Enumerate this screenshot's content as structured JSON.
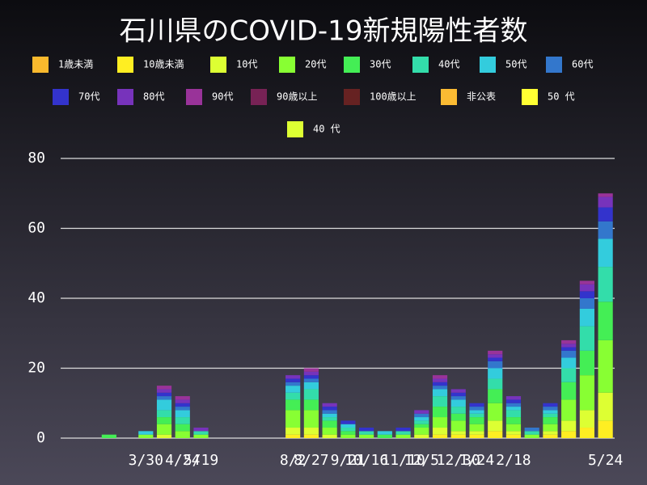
{
  "chart_data": {
    "type": "stacked_bar",
    "title": "石川県のCOVID-19新規陽性者数",
    "categories": [
      null,
      null,
      null,
      null,
      "3/30",
      null,
      "4/24",
      "5/19",
      null,
      null,
      null,
      null,
      "8/2",
      "8/27",
      null,
      "9/21",
      "10/16",
      null,
      "11/10",
      "12/5",
      null,
      "12/30",
      "1/24",
      null,
      "2/18",
      null,
      null,
      null,
      null,
      "5/24"
    ],
    "ylim": [
      0,
      80
    ],
    "yticks": [
      0,
      20,
      40,
      60,
      80
    ],
    "grid": true,
    "series": [
      {
        "name": "1歳未満",
        "color": "#f9b92d",
        "values": [
          0,
          0,
          0,
          0,
          0,
          0,
          0,
          0,
          0,
          0,
          0,
          0,
          0,
          0,
          0,
          0,
          0,
          0,
          0,
          0,
          0,
          0,
          0,
          0,
          0,
          0,
          0,
          0,
          0,
          0
        ]
      },
      {
        "name": "10歳未満",
        "color": "#ffee22",
        "values": [
          0,
          0,
          0,
          0,
          0,
          0,
          0,
          0,
          0,
          0,
          0,
          0,
          1,
          1,
          0,
          0,
          0,
          0,
          0,
          0,
          1,
          1,
          1,
          2,
          1,
          0,
          1,
          2,
          3,
          5
        ]
      },
      {
        "name": "10代",
        "color": "#ddff33",
        "values": [
          0,
          0,
          0,
          0,
          0,
          1,
          0,
          0,
          0,
          0,
          0,
          0,
          2,
          2,
          1,
          0,
          0,
          0,
          0,
          1,
          2,
          1,
          1,
          3,
          1,
          0,
          1,
          3,
          5,
          8
        ]
      },
      {
        "name": "20代",
        "color": "#88ff33",
        "values": [
          0,
          0,
          0,
          0,
          1,
          3,
          2,
          1,
          0,
          0,
          0,
          0,
          5,
          5,
          2,
          1,
          1,
          0,
          1,
          2,
          3,
          3,
          2,
          5,
          2,
          1,
          2,
          6,
          10,
          15
        ]
      },
      {
        "name": "30代",
        "color": "#44ee55",
        "values": [
          0,
          0,
          1,
          0,
          0,
          2,
          2,
          0,
          0,
          0,
          0,
          0,
          3,
          3,
          2,
          1,
          0,
          1,
          0,
          1,
          3,
          2,
          2,
          4,
          2,
          0,
          2,
          5,
          7,
          11
        ]
      },
      {
        "name": "40代",
        "color": "#33ddaa",
        "values": [
          0,
          0,
          0,
          0,
          0,
          2,
          2,
          1,
          0,
          0,
          0,
          0,
          2,
          3,
          1,
          1,
          1,
          0,
          1,
          1,
          3,
          2,
          1,
          3,
          2,
          1,
          1,
          4,
          7,
          10
        ]
      },
      {
        "name": "50代",
        "color": "#33ccdd",
        "values": [
          0,
          0,
          0,
          0,
          1,
          3,
          2,
          0,
          0,
          0,
          0,
          0,
          2,
          2,
          1,
          1,
          0,
          1,
          0,
          1,
          2,
          2,
          1,
          3,
          1,
          0,
          1,
          3,
          5,
          8
        ]
      },
      {
        "name": "60代",
        "color": "#3377cc",
        "values": [
          0,
          0,
          0,
          0,
          0,
          1,
          1,
          0,
          0,
          0,
          0,
          0,
          1,
          1,
          1,
          0,
          0,
          0,
          0,
          1,
          1,
          1,
          1,
          2,
          1,
          1,
          1,
          2,
          3,
          5
        ]
      },
      {
        "name": "70代",
        "color": "#3333cc",
        "values": [
          0,
          0,
          0,
          0,
          0,
          1,
          1,
          0,
          0,
          0,
          0,
          0,
          1,
          1,
          1,
          1,
          1,
          0,
          1,
          0,
          1,
          1,
          1,
          1,
          1,
          0,
          1,
          1,
          2,
          4
        ]
      },
      {
        "name": "80代",
        "color": "#7733bb",
        "values": [
          0,
          0,
          0,
          0,
          0,
          1,
          1,
          1,
          0,
          0,
          0,
          0,
          1,
          1,
          1,
          0,
          0,
          0,
          0,
          1,
          1,
          1,
          0,
          1,
          1,
          0,
          0,
          1,
          2,
          3
        ]
      },
      {
        "name": "90代",
        "color": "#993399",
        "values": [
          0,
          0,
          0,
          0,
          0,
          1,
          1,
          0,
          0,
          0,
          0,
          0,
          0,
          1,
          0,
          0,
          0,
          0,
          0,
          0,
          1,
          0,
          0,
          1,
          0,
          0,
          0,
          1,
          1,
          1
        ]
      },
      {
        "name": "90歳以上",
        "color": "#772255",
        "values": [
          0,
          0,
          0,
          0,
          0,
          0,
          0,
          0,
          0,
          0,
          0,
          0,
          0,
          0,
          0,
          0,
          0,
          0,
          0,
          0,
          0,
          0,
          0,
          0,
          0,
          0,
          0,
          0,
          0,
          0
        ]
      },
      {
        "name": "100歳以上",
        "color": "#662222",
        "values": [
          0,
          0,
          0,
          0,
          0,
          0,
          0,
          0,
          0,
          0,
          0,
          0,
          0,
          0,
          0,
          0,
          0,
          0,
          0,
          0,
          0,
          0,
          0,
          0,
          0,
          0,
          0,
          0,
          0,
          0
        ]
      },
      {
        "name": "非公表",
        "color": "#fbbb33",
        "values": [
          0,
          0,
          0,
          0,
          0,
          0,
          0,
          0,
          0,
          0,
          0,
          0,
          0,
          0,
          0,
          0,
          0,
          0,
          0,
          0,
          0,
          0,
          0,
          0,
          0,
          0,
          0,
          0,
          0,
          0
        ]
      },
      {
        "name": "50 代",
        "color": "#ffff33",
        "values": [
          0,
          0,
          0,
          0,
          0,
          0,
          0,
          0,
          0,
          0,
          0,
          0,
          0,
          0,
          0,
          0,
          0,
          0,
          0,
          0,
          0,
          0,
          0,
          0,
          0,
          0,
          0,
          0,
          0,
          0
        ]
      },
      {
        "name": "40 代",
        "color": "#ddff33",
        "values": [
          0,
          0,
          0,
          0,
          0,
          0,
          0,
          0,
          0,
          0,
          0,
          0,
          0,
          0,
          0,
          0,
          0,
          0,
          0,
          0,
          0,
          0,
          0,
          0,
          0,
          0,
          0,
          0,
          0,
          0
        ]
      }
    ]
  }
}
